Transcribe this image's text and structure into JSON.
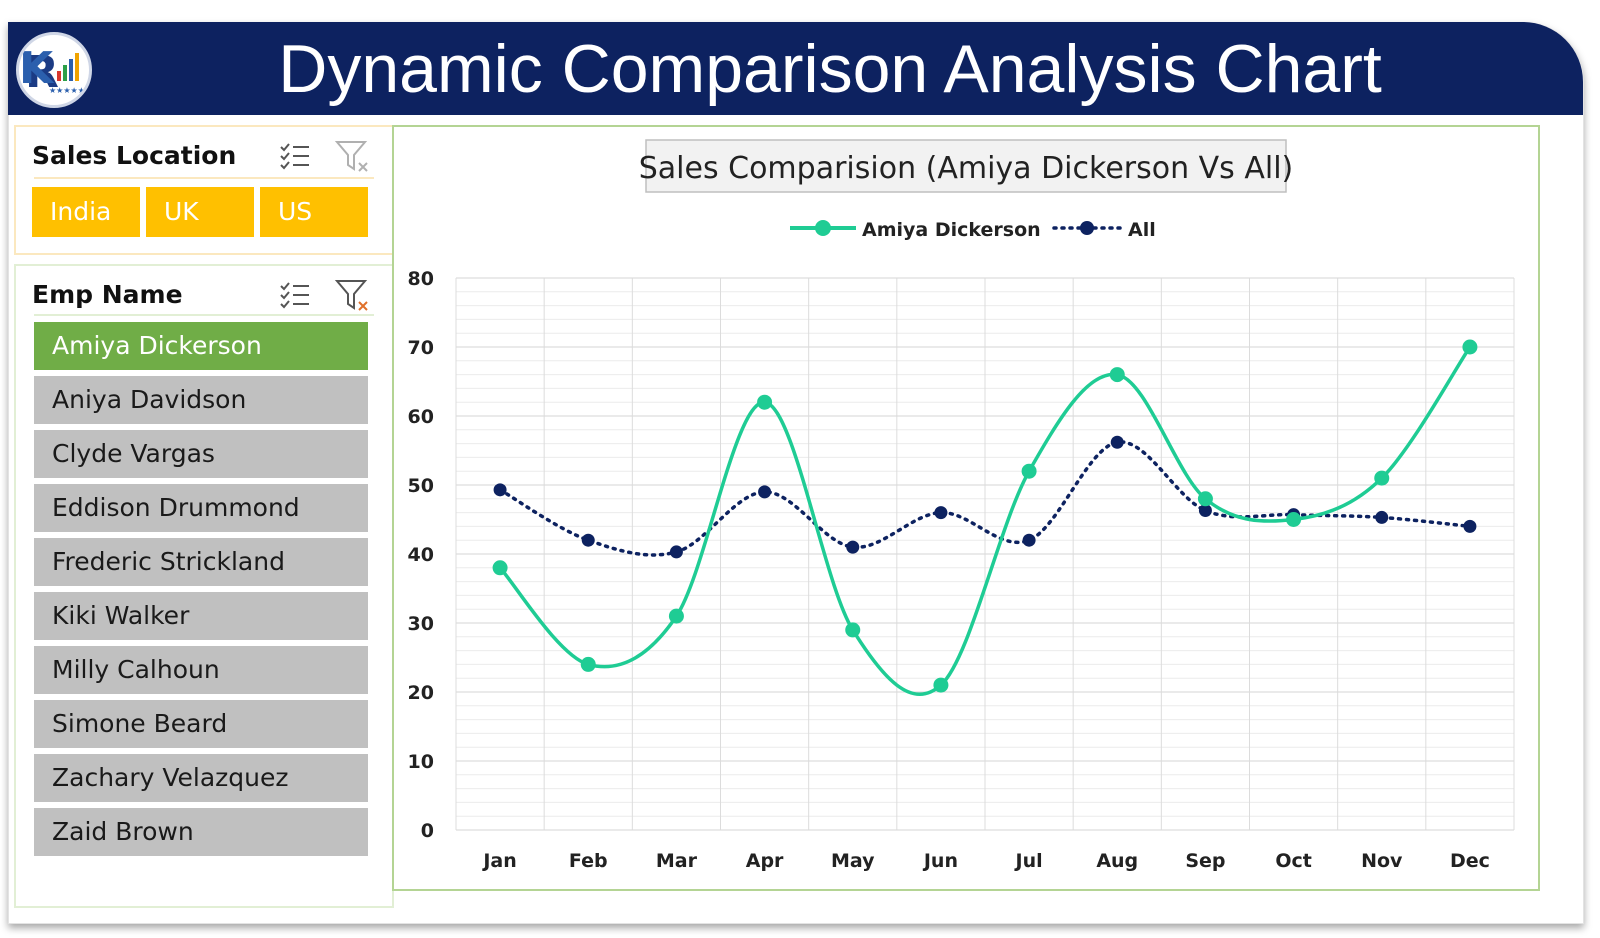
{
  "header": {
    "title": "Dynamic Comparison Analysis Chart",
    "logo_icon": "pk-logo-icon",
    "background": "#0d2260"
  },
  "sales_location_slicer": {
    "label": "Sales Location",
    "items": [
      {
        "label": "India",
        "selected": true
      },
      {
        "label": "UK",
        "selected": true
      },
      {
        "label": "US",
        "selected": true
      }
    ],
    "selected_color": "#ffc000"
  },
  "emp_name_slicer": {
    "label": "Emp Name",
    "items": [
      {
        "label": "Amiya Dickerson",
        "selected": true
      },
      {
        "label": "Aniya Davidson",
        "selected": false
      },
      {
        "label": "Clyde Vargas",
        "selected": false
      },
      {
        "label": "Eddison Drummond",
        "selected": false
      },
      {
        "label": "Frederic Strickland",
        "selected": false
      },
      {
        "label": "Kiki Walker",
        "selected": false
      },
      {
        "label": "Milly Calhoun",
        "selected": false
      },
      {
        "label": "Simone Beard",
        "selected": false
      },
      {
        "label": "Zachary Velazquez",
        "selected": false
      },
      {
        "label": "Zaid Brown",
        "selected": false
      }
    ],
    "selected_color": "#70ad47",
    "unselected_color": "#c0c0c0"
  },
  "chart_data": {
    "type": "line",
    "title": "Sales Comparision (Amiya Dickerson Vs All)",
    "xlabel": "",
    "ylabel": "",
    "categories": [
      "Jan",
      "Feb",
      "Mar",
      "Apr",
      "May",
      "Jun",
      "Jul",
      "Aug",
      "Sep",
      "Oct",
      "Nov",
      "Dec"
    ],
    "series": [
      {
        "name": "Amiya Dickerson",
        "values": [
          38,
          24,
          31,
          62,
          29,
          21,
          52,
          66,
          48,
          45,
          51,
          70
        ],
        "color": "#1fcc94",
        "style": "solid-smooth"
      },
      {
        "name": "All",
        "values": [
          49.3,
          42,
          40.3,
          49,
          41,
          46,
          42,
          56.2,
          46.3,
          45.7,
          45.3,
          44
        ],
        "color": "#0d2260",
        "style": "dotted-smooth"
      }
    ],
    "ylim": [
      0,
      80
    ],
    "yticks": [
      0,
      10,
      20,
      30,
      40,
      50,
      60,
      70,
      80
    ],
    "grid": true,
    "legend_position": "top-center"
  }
}
